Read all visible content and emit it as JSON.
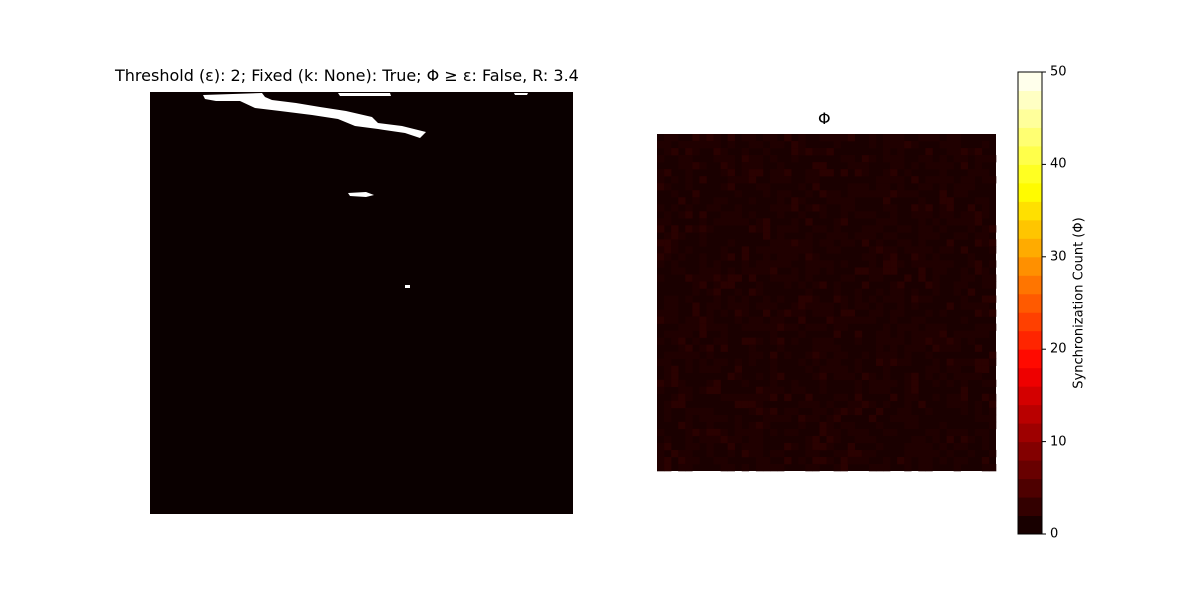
{
  "chart_data": [
    {
      "type": "heatmap",
      "title": "Threshold (ε): 2; Fixed (k: None): True; Φ ≥ ε: False, R: 3.4",
      "description_values": "binary mask; mostly 0 (black) with small regions of 1 (white) near the top",
      "palette": {
        "off": "#0a0000",
        "on": "#ffffff"
      },
      "regions": [
        {
          "label": "streak",
          "value": 1
        },
        {
          "label": "blob",
          "value": 1
        },
        {
          "label": "dot",
          "value": 1
        }
      ]
    },
    {
      "type": "heatmap",
      "title": "Φ",
      "value_range": [
        0,
        50
      ],
      "typical_value": 1,
      "colorbar": {
        "label": "Synchronization Count (Φ)",
        "ticks": [
          0,
          10,
          20,
          30,
          40,
          50
        ],
        "levels": 25,
        "cmap": "hot"
      }
    }
  ]
}
